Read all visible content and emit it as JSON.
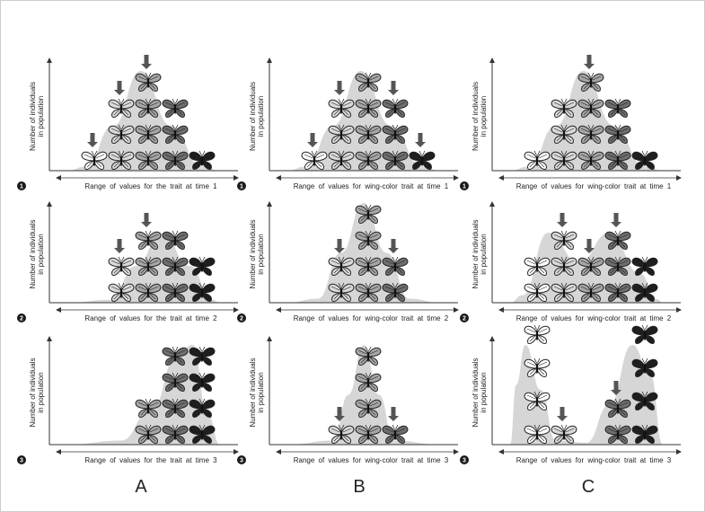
{
  "columns": [
    {
      "label": "A",
      "panels": [
        {
          "step": "1",
          "ylabel_line1": "Number of individuals",
          "ylabel_line2": "in population",
          "xlabel": "Range of values for the trait at time 1",
          "counts": [
            1,
            3,
            4,
            3,
            1
          ],
          "topRow": 4,
          "shades": [
            0,
            1,
            2,
            3,
            4
          ],
          "arrows": [
            0,
            1,
            2
          ],
          "curve": [
            [
              0,
              0
            ],
            [
              0.12,
              0.04
            ],
            [
              0.3,
              0.45
            ],
            [
              0.48,
              1
            ],
            [
              0.68,
              0.45
            ],
            [
              0.88,
              0.04
            ],
            [
              1,
              0
            ]
          ]
        },
        {
          "step": "2",
          "ylabel_line1": "Number of individuals",
          "ylabel_line2": "in population",
          "xlabel": "Range of values for the trait at time 2",
          "counts": [
            0,
            2,
            3,
            3,
            2
          ],
          "topRow": 3,
          "shades": [
            0,
            1,
            2,
            3,
            4
          ],
          "arrows": [
            1,
            2
          ],
          "curve": [
            [
              0,
              0
            ],
            [
              0.28,
              0.04
            ],
            [
              0.45,
              0.5
            ],
            [
              0.62,
              0.95
            ],
            [
              0.8,
              0.5
            ],
            [
              0.95,
              0.04
            ],
            [
              1,
              0
            ]
          ]
        },
        {
          "step": "3",
          "ylabel_line1": "Number of individuals",
          "ylabel_line2": "in population",
          "xlabel": "Range of values for the trait at time 3",
          "counts": [
            0,
            0,
            2,
            4,
            4
          ],
          "topRow": 4,
          "shades": [
            0,
            1,
            2,
            3,
            4
          ],
          "arrows": [],
          "curve": [
            [
              0,
              0
            ],
            [
              0.35,
              0.04
            ],
            [
              0.55,
              0.35
            ],
            [
              0.72,
              0.9
            ],
            [
              0.82,
              1
            ],
            [
              0.92,
              0.3
            ],
            [
              1,
              0
            ]
          ]
        }
      ]
    },
    {
      "label": "B",
      "panels": [
        {
          "step": "1",
          "ylabel_line1": "Number of individuals",
          "ylabel_line2": "in population",
          "xlabel": "Range of values for wing-color trait at time 1",
          "counts": [
            1,
            3,
            4,
            3,
            1
          ],
          "topRow": 4,
          "shades": [
            0,
            1,
            2,
            3,
            4
          ],
          "arrows": [
            0,
            1,
            3,
            4
          ],
          "curve": [
            [
              0,
              0
            ],
            [
              0.12,
              0.04
            ],
            [
              0.3,
              0.45
            ],
            [
              0.48,
              1
            ],
            [
              0.68,
              0.45
            ],
            [
              0.88,
              0.04
            ],
            [
              1,
              0
            ]
          ]
        },
        {
          "step": "2",
          "ylabel_line1": "Number of individuals",
          "ylabel_line2": "in population",
          "xlabel": "Range of values for wing-color trait at time 2",
          "counts": [
            0,
            2,
            4,
            2,
            0
          ],
          "topRow": 4,
          "shades": [
            0,
            1,
            2,
            3,
            4
          ],
          "arrows": [
            1,
            3
          ],
          "curve": [
            [
              0,
              0
            ],
            [
              0.2,
              0.04
            ],
            [
              0.35,
              0.5
            ],
            [
              0.5,
              1
            ],
            [
              0.65,
              0.5
            ],
            [
              0.8,
              0.04
            ],
            [
              1,
              0
            ]
          ]
        },
        {
          "step": "3",
          "ylabel_line1": "Number of individuals",
          "ylabel_line2": "in population",
          "xlabel": "Range of values for wing-color trait at time 3",
          "counts": [
            0,
            1,
            4,
            1,
            0
          ],
          "topRow": 4,
          "shades": [
            0,
            1,
            2,
            3,
            4
          ],
          "arrows": [
            1,
            3
          ],
          "curve": [
            [
              0,
              0
            ],
            [
              0.3,
              0.04
            ],
            [
              0.4,
              0.5
            ],
            [
              0.5,
              1
            ],
            [
              0.6,
              0.5
            ],
            [
              0.7,
              0.04
            ],
            [
              1,
              0
            ]
          ]
        }
      ]
    },
    {
      "label": "C",
      "panels": [
        {
          "step": "1",
          "ylabel_line1": "Number of individuals",
          "ylabel_line2": "in population",
          "xlabel": "Range of values for wing-color trait at time 1",
          "counts": [
            1,
            3,
            4,
            3,
            1
          ],
          "topRow": 4,
          "shades": [
            0,
            1,
            2,
            3,
            4
          ],
          "arrows": [
            2
          ],
          "curve": [
            [
              0,
              0
            ],
            [
              0.12,
              0.04
            ],
            [
              0.3,
              0.45
            ],
            [
              0.48,
              1
            ],
            [
              0.68,
              0.45
            ],
            [
              0.88,
              0.04
            ],
            [
              1,
              0
            ]
          ]
        },
        {
          "step": "2",
          "ylabel_line1": "Number of individuals",
          "ylabel_line2": "in population",
          "xlabel": "Range of values for wing-color trait at time 2",
          "counts": [
            2,
            3,
            2,
            3,
            2
          ],
          "topRow": 3,
          "shades": [
            0,
            1,
            2,
            3,
            4
          ],
          "arrows": [
            1,
            2,
            3
          ],
          "curve": [
            [
              0,
              0
            ],
            [
              0.08,
              0.1
            ],
            [
              0.25,
              0.95
            ],
            [
              0.45,
              0.55
            ],
            [
              0.65,
              0.95
            ],
            [
              0.85,
              0.4
            ],
            [
              0.96,
              0.05
            ],
            [
              1,
              0
            ]
          ]
        },
        {
          "step": "3",
          "ylabel_line1": "Number of individuals",
          "ylabel_line2": "in population",
          "xlabel": "Range of values for wing-color trait at time 3",
          "counts": [
            4,
            1,
            0,
            2,
            4
          ],
          "topRow": 4,
          "shades": [
            0,
            1,
            2,
            3,
            4
          ],
          "arrows": [
            1,
            3
          ],
          "curve": [
            [
              0,
              0
            ],
            [
              0.04,
              0.6
            ],
            [
              0.1,
              1
            ],
            [
              0.2,
              0.55
            ],
            [
              0.3,
              0.04
            ],
            [
              0.5,
              0.02
            ],
            [
              0.65,
              0.4
            ],
            [
              0.8,
              1
            ],
            [
              0.92,
              0.7
            ],
            [
              1,
              0
            ]
          ]
        }
      ]
    }
  ],
  "colors": {
    "curve_fill": "#d6d6d6",
    "axis": "#333333",
    "arrow": "#555555",
    "number_badge": "#1a1a1a",
    "butterfly_shades": [
      "#ffffff",
      "#d9d9d9",
      "#a6a6a6",
      "#6e6e6e",
      "#1e1e1e"
    ],
    "butterfly_outline": "#222222"
  }
}
